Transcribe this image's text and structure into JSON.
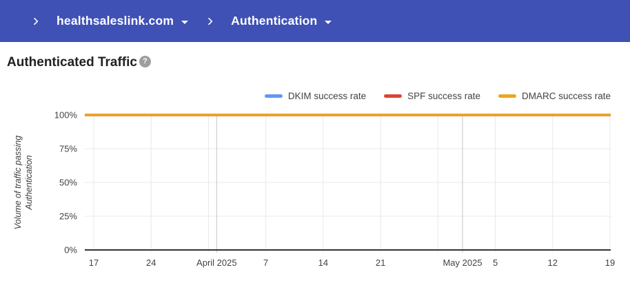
{
  "header": {
    "domain_label": "healthsaleslink.com",
    "section_label": "Authentication"
  },
  "page": {
    "title": "Authenticated Traffic",
    "help_label": "?"
  },
  "colors": {
    "header_bg": "#3F51B5",
    "axis_line": "#333333",
    "gridline": "#E8E8E8",
    "month_gridline": "#C6C6C6",
    "tick_text": "#424242"
  },
  "chart_data": {
    "type": "line",
    "title": "Authenticated Traffic",
    "ylabel": "Volume of traffic passing Authentication",
    "ylabel_lines": [
      "Volume of traffic passing",
      "Authentication"
    ],
    "ylim": [
      0,
      100
    ],
    "grid": true,
    "legend_position": "top-right",
    "y_ticks": [
      {
        "value": 0,
        "label": "0%"
      },
      {
        "value": 25,
        "label": "25%"
      },
      {
        "value": 50,
        "label": "50%"
      },
      {
        "value": 75,
        "label": "75%"
      },
      {
        "value": 100,
        "label": "100%"
      }
    ],
    "x_axis": {
      "week_ticks": [
        {
          "day": 0,
          "label": "17"
        },
        {
          "day": 7,
          "label": "24"
        },
        {
          "day": 14,
          "label": ""
        },
        {
          "day": 21,
          "label": "7"
        },
        {
          "day": 28,
          "label": "14"
        },
        {
          "day": 35,
          "label": "21"
        },
        {
          "day": 42,
          "label": ""
        },
        {
          "day": 49,
          "label": "5"
        },
        {
          "day": 56,
          "label": "12"
        },
        {
          "day": 63,
          "label": "19"
        }
      ],
      "month_ticks": [
        {
          "day": 15,
          "label": "April 2025"
        },
        {
          "day": 45,
          "label": "May 2025"
        }
      ]
    },
    "series": [
      {
        "name": "DKIM success rate",
        "color": "#5E97F6",
        "value_percent": 100
      },
      {
        "name": "SPF success rate",
        "color": "#DB4437",
        "value_percent": 100
      },
      {
        "name": "DMARC success rate",
        "color": "#F0A41E",
        "value_percent": 100
      }
    ]
  }
}
